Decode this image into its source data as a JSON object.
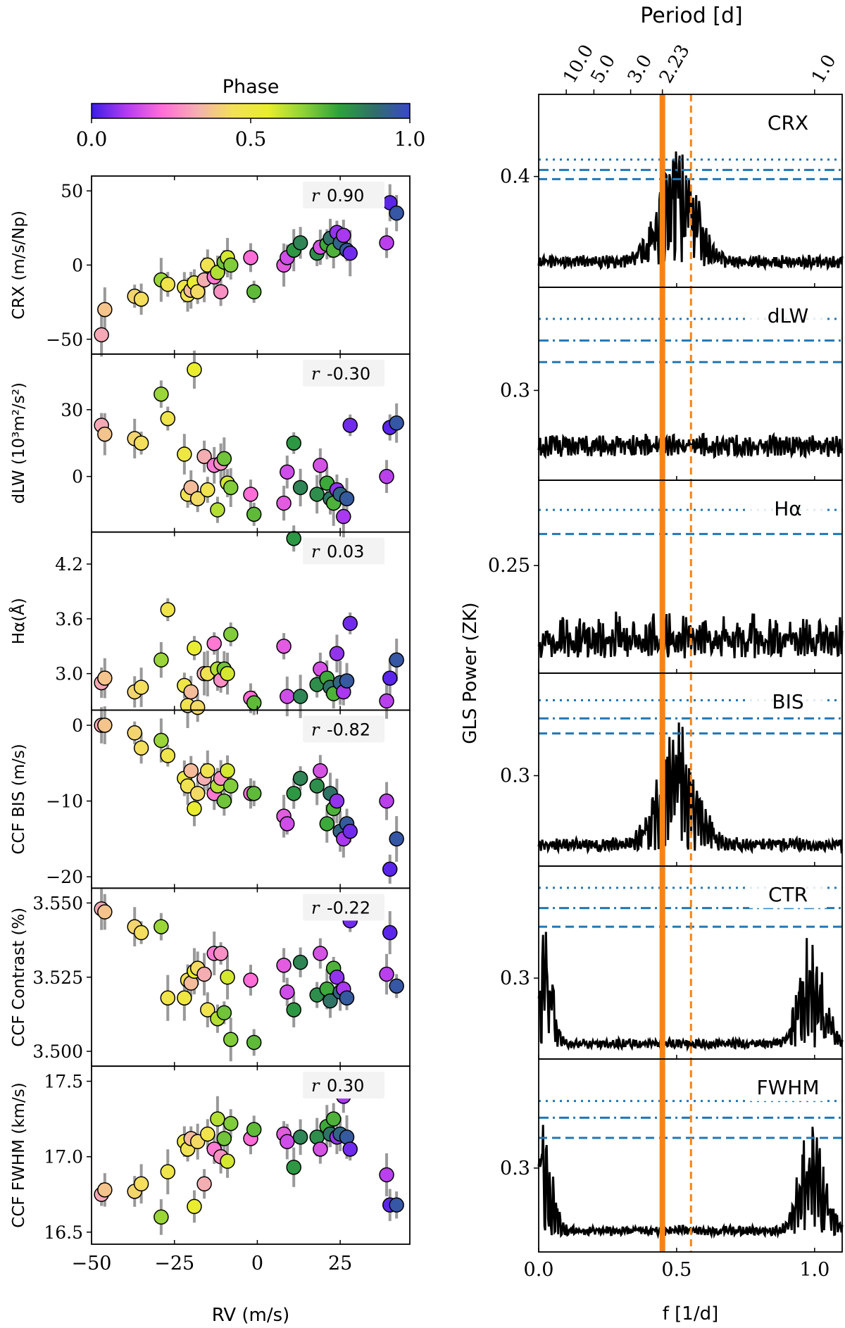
{
  "chart_data": [
    {
      "type": "scatter",
      "name": "rv-correlations",
      "colorbar": {
        "label": "Phase",
        "ticks": [
          "0.0",
          "0.5",
          "1.0"
        ],
        "stops": [
          "#3a1ee6",
          "#b43cf0",
          "#ff6ed8",
          "#f4b0b0",
          "#f3e05a",
          "#e8ee2c",
          "#8cd23a",
          "#2ea13a",
          "#2f6f6a",
          "#3a48c8"
        ]
      },
      "xlabel": "RV (m/s)",
      "xlim": [
        -50,
        46
      ],
      "xticks": [
        {
          "v": -50,
          "label": "−50"
        },
        {
          "v": -25,
          "label": "−25"
        },
        {
          "v": 0,
          "label": "0"
        },
        {
          "v": 25,
          "label": "25"
        }
      ],
      "points": [
        {
          "rv": -47,
          "ph": 0.32
        },
        {
          "rv": -46,
          "ph": 0.38
        },
        {
          "rv": -37,
          "ph": 0.42
        },
        {
          "rv": -35,
          "ph": 0.44
        },
        {
          "rv": -29,
          "ph": 0.65
        },
        {
          "rv": -27,
          "ph": 0.48
        },
        {
          "rv": -22,
          "ph": 0.5
        },
        {
          "rv": -21,
          "ph": 0.46
        },
        {
          "rv": -20,
          "ph": 0.36
        },
        {
          "rv": -19,
          "ph": 0.55
        },
        {
          "rv": -18,
          "ph": 0.43
        },
        {
          "rv": -16,
          "ph": 0.33
        },
        {
          "rv": -15,
          "ph": 0.47
        },
        {
          "rv": -13,
          "ph": 0.24
        },
        {
          "rv": -12,
          "ph": 0.62
        },
        {
          "rv": -11,
          "ph": 0.28
        },
        {
          "rv": -10,
          "ph": 0.7
        },
        {
          "rv": -9,
          "ph": 0.58
        },
        {
          "rv": -8,
          "ph": 0.68
        },
        {
          "rv": -2,
          "ph": 0.22
        },
        {
          "rv": -1,
          "ph": 0.72
        },
        {
          "rv": 8,
          "ph": 0.18
        },
        {
          "rv": 9,
          "ph": 0.15
        },
        {
          "rv": 11,
          "ph": 0.8
        },
        {
          "rv": 13,
          "ph": 0.84
        },
        {
          "rv": 18,
          "ph": 0.82
        },
        {
          "rv": 19,
          "ph": 0.16
        },
        {
          "rv": 21,
          "ph": 0.76
        },
        {
          "rv": 22,
          "ph": 0.88
        },
        {
          "rv": 23,
          "ph": 0.74
        },
        {
          "rv": 24,
          "ph": 0.08
        },
        {
          "rv": 25,
          "ph": 0.92
        },
        {
          "rv": 26,
          "ph": 0.1
        },
        {
          "rv": 27,
          "ph": 0.95
        },
        {
          "rv": 28,
          "ph": 0.05
        },
        {
          "rv": 39,
          "ph": 0.12
        },
        {
          "rv": 40,
          "ph": 0.03
        },
        {
          "rv": 42,
          "ph": 0.96
        }
      ],
      "panels": [
        {
          "ylabel": "CRX (m/s/Np)",
          "r": "0.90",
          "ylim": [
            -60,
            60
          ],
          "yticks": [
            {
              "v": 50,
              "label": "50"
            },
            {
              "v": 0,
              "label": "0"
            },
            {
              "v": -50,
              "label": "−50"
            }
          ],
          "y": [
            -47,
            -30,
            -21,
            -23,
            -10,
            -13,
            -15,
            -20,
            -17,
            -12,
            -18,
            -10,
            0,
            -8,
            -5,
            -18,
            2,
            5,
            0,
            5,
            -18,
            0,
            5,
            10,
            15,
            8,
            12,
            14,
            18,
            10,
            22,
            15,
            20,
            10,
            8,
            15,
            42,
            35
          ]
        },
        {
          "ylabel": "dLW (10³m²/s²)",
          "r": "-0.30",
          "ylim": [
            -25,
            55
          ],
          "yticks": [
            {
              "v": 30,
              "label": "30"
            },
            {
              "v": 0,
              "label": "0"
            }
          ],
          "y": [
            23,
            19,
            17,
            15,
            37,
            26,
            10,
            -8,
            -5,
            48,
            -10,
            9,
            -6,
            5,
            -15,
            6,
            8,
            -3,
            -5,
            -8,
            -17,
            -12,
            2,
            15,
            -5,
            -8,
            5,
            -3,
            -10,
            -12,
            -6,
            -8,
            -18,
            -10,
            23,
            0,
            22,
            24
          ]
        },
        {
          "ylabel": "Hα(Å)",
          "r": "0.03",
          "ylim": [
            2.6,
            4.55
          ],
          "yticks": [
            {
              "v": 4.2,
              "label": "4.2"
            },
            {
              "v": 3.6,
              "label": "3.6"
            },
            {
              "v": 3.0,
              "label": "3.0"
            }
          ],
          "y": [
            2.9,
            2.95,
            2.8,
            2.85,
            3.15,
            3.7,
            2.87,
            2.65,
            2.8,
            3.28,
            2.63,
            3.0,
            3.0,
            3.33,
            3.05,
            2.93,
            3.05,
            3.0,
            3.43,
            2.73,
            2.68,
            3.3,
            2.75,
            4.48,
            2.75,
            2.88,
            3.05,
            2.95,
            2.85,
            2.78,
            3.22,
            2.9,
            2.8,
            2.92,
            3.55,
            2.7,
            2.95,
            3.15
          ]
        },
        {
          "ylabel": "CCF BIS (m/s)",
          "r": "-0.82",
          "ylim": [
            -21.5,
            2
          ],
          "yticks": [
            {
              "v": 0,
              "label": "0"
            },
            {
              "v": -10,
              "label": "−10"
            },
            {
              "v": -20,
              "label": "−20"
            }
          ],
          "y": [
            0,
            0,
            -1,
            -3,
            -2,
            -4,
            -7,
            -8,
            -6,
            -11,
            -9,
            -7,
            -6,
            -9,
            -8,
            -7,
            -10,
            -6,
            -8,
            -9,
            -9,
            -12,
            -13,
            -9,
            -7,
            -8,
            -6,
            -13,
            -9,
            -11,
            -10,
            -14,
            -15,
            -13,
            -14,
            -10,
            -19,
            -15
          ]
        },
        {
          "ylabel": "CCF Contrast (%)",
          "r": "-0.22",
          "ylim": [
            3.495,
            3.555
          ],
          "yticks": [
            {
              "v": 3.55,
              "label": "3.550"
            },
            {
              "v": 3.525,
              "label": "3.525"
            },
            {
              "v": 3.5,
              "label": "3.500"
            }
          ],
          "y": [
            3.548,
            3.547,
            3.542,
            3.54,
            3.542,
            3.518,
            3.518,
            3.524,
            3.523,
            3.527,
            3.528,
            3.526,
            3.514,
            3.533,
            3.511,
            3.533,
            3.513,
            3.525,
            3.504,
            3.524,
            3.503,
            3.529,
            3.52,
            3.514,
            3.53,
            3.519,
            3.533,
            3.521,
            3.517,
            3.528,
            3.525,
            3.52,
            3.521,
            3.518,
            3.544,
            3.526,
            3.54,
            3.522
          ]
        },
        {
          "ylabel": "CCF FWHM (km/s)",
          "r": "0.30",
          "ylim": [
            16.42,
            17.6
          ],
          "yticks": [
            {
              "v": 17.5,
              "label": "17.5"
            },
            {
              "v": 17.0,
              "label": "17.0"
            },
            {
              "v": 16.5,
              "label": "16.5"
            }
          ],
          "y": [
            16.75,
            16.78,
            16.77,
            16.82,
            16.6,
            16.9,
            17.1,
            17.05,
            17.12,
            16.67,
            17.1,
            16.82,
            17.15,
            17.05,
            17.25,
            17.0,
            17.12,
            16.97,
            17.22,
            17.12,
            17.18,
            17.15,
            17.1,
            16.93,
            17.13,
            17.13,
            17.05,
            17.2,
            17.15,
            17.25,
            17.13,
            17.15,
            17.4,
            17.13,
            17.05,
            16.88,
            16.68,
            16.68
          ]
        }
      ]
    },
    {
      "type": "line",
      "name": "gls-periodograms",
      "ylabel": "GLS Power (ZK)",
      "xlabel": "f [1/d]",
      "top_axis_label": "Period [d]",
      "xlim": [
        0,
        1.1
      ],
      "xticks": [
        {
          "v": 0,
          "label": "0.0"
        },
        {
          "v": 0.5,
          "label": "0.5"
        },
        {
          "v": 1.0,
          "label": "1.0"
        }
      ],
      "period_ticks": [
        {
          "v": 0.1,
          "label": "10.0"
        },
        {
          "v": 0.2,
          "label": "5.0"
        },
        {
          "v": 0.3333,
          "label": "3.0"
        },
        {
          "v": 0.4484,
          "label": "2.23"
        },
        {
          "v": 1.0,
          "label": "1.0"
        }
      ],
      "period_line": {
        "f": 0.4484,
        "color": "#f58418"
      },
      "alias_line": {
        "f": 0.552,
        "color": "#f58418"
      },
      "fap_color": "#2277b4",
      "panels": [
        {
          "label": "CRX",
          "ylim": [
            0.315,
            0.463
          ],
          "ytick": {
            "v": 0.4,
            "label": "0.4"
          },
          "base": 0.33,
          "noise": 0.025,
          "peaks": "center",
          "peak_height": 0.43,
          "fap": [
            0.413,
            0.405,
            0.398
          ]
        },
        {
          "label": "dLW",
          "ylim": [
            0.246,
            0.362
          ],
          "ytick": {
            "v": 0.3,
            "label": "0.3"
          },
          "base": 0.26,
          "noise": 0.035,
          "peaks": "flat",
          "peak_height": 0.3,
          "fap": [
            0.343,
            0.33,
            0.317
          ]
        },
        {
          "label": "Hα",
          "ylim": [
            0.192,
            0.296
          ],
          "ytick": {
            "v": 0.25,
            "label": "0.25"
          },
          "base": 0.2,
          "noise": 0.025,
          "peaks": "ripple",
          "peak_height": 0.226,
          "fap": [
            0.28,
            null,
            0.267
          ]
        },
        {
          "label": "BIS",
          "ylim": [
            0.24,
            0.368
          ],
          "ytick": {
            "v": 0.3,
            "label": "0.3"
          },
          "base": 0.25,
          "noise": 0.02,
          "peaks": "center",
          "peak_height": 0.34,
          "fap": [
            0.35,
            0.338,
            0.328
          ]
        },
        {
          "label": "CTR",
          "ylim": [
            0.248,
            0.372
          ],
          "ytick": {
            "v": 0.3,
            "label": "0.3"
          },
          "base": 0.255,
          "noise": 0.02,
          "peaks": "ends",
          "peak_height": 0.33,
          "fap": [
            0.358,
            0.345,
            0.333
          ]
        },
        {
          "label": "FWHM",
          "ylim": [
            0.25,
            0.365
          ],
          "ytick": {
            "v": 0.3,
            "label": "0.3"
          },
          "base": 0.26,
          "noise": 0.02,
          "peaks": "ends",
          "peak_height": 0.33,
          "fap": [
            0.34,
            0.33,
            0.318
          ]
        }
      ]
    }
  ]
}
